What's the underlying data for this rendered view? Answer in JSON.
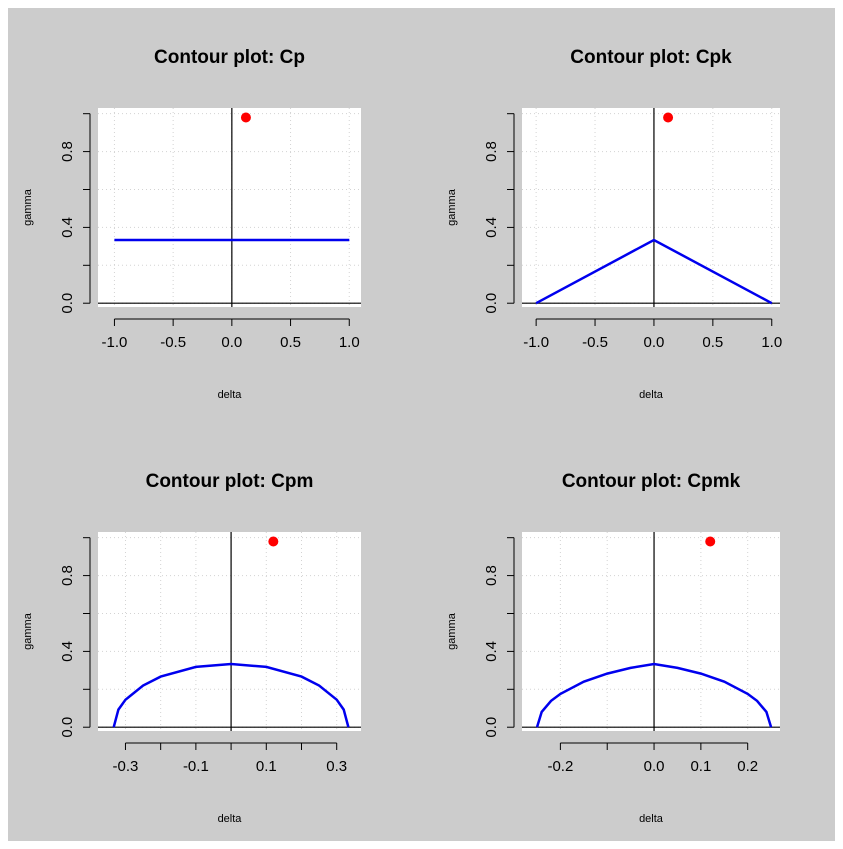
{
  "chart_data": [
    {
      "type": "line",
      "title": "Contour plot: Cp",
      "xlabel": "delta",
      "ylabel": "gamma",
      "x": [
        -1,
        1
      ],
      "values": [
        0.3333,
        0.3333
      ],
      "color": "#0000ee",
      "point_x": 0.12,
      "point_y": 0.98,
      "point_color": "#ff0000",
      "ref_x": 0,
      "ref_y": 0,
      "xlim": [
        -1.14,
        1.1
      ],
      "ylim": [
        -0.02,
        1.03
      ],
      "xticks": [
        {
          "value": -1,
          "label": "-1.0"
        },
        -0.5,
        {
          "value": 0,
          "label": "0.0"
        },
        0.5,
        {
          "value": 1,
          "label": "1.0"
        }
      ],
      "xminorticks": [],
      "yticks": [
        {
          "value": 0,
          "label": "0.0"
        },
        0.4,
        0.8
      ],
      "yminorticks": [
        0.2,
        0.6,
        1.0
      ],
      "grid": true
    },
    {
      "type": "line",
      "title": "Contour plot: Cpk",
      "xlabel": "delta",
      "ylabel": "gamma",
      "x": [
        -1,
        0,
        1
      ],
      "values": [
        0,
        0.3333,
        0
      ],
      "color": "#0000ee",
      "point_x": 0.12,
      "point_y": 0.98,
      "point_color": "#ff0000",
      "ref_x": 0,
      "ref_y": 0,
      "xlim": [
        -1.12,
        1.07
      ],
      "ylim": [
        -0.02,
        1.03
      ],
      "xticks": [
        {
          "value": -1,
          "label": "-1.0"
        },
        -0.5,
        {
          "value": 0,
          "label": "0.0"
        },
        0.5,
        {
          "value": 1,
          "label": "1.0"
        }
      ],
      "xminorticks": [],
      "yticks": [
        {
          "value": 0,
          "label": "0.0"
        },
        0.4,
        0.8
      ],
      "yminorticks": [
        0.2,
        0.6,
        1.0
      ],
      "grid": true
    },
    {
      "type": "line",
      "title": "Contour plot: Cpm",
      "xlabel": "delta",
      "ylabel": "gamma",
      "x": [
        -0.3333,
        -0.32,
        -0.3,
        -0.25,
        -0.2,
        -0.1,
        0,
        0.1,
        0.2,
        0.25,
        0.3,
        0.32,
        0.3333
      ],
      "values": [
        0,
        0.093,
        0.145,
        0.22,
        0.267,
        0.318,
        0.3333,
        0.318,
        0.267,
        0.22,
        0.145,
        0.093,
        0
      ],
      "color": "#0000ee",
      "point_x": 0.12,
      "point_y": 0.98,
      "point_color": "#ff0000",
      "ref_x": 0,
      "ref_y": 0,
      "xlim": [
        -0.378,
        0.369
      ],
      "ylim": [
        -0.02,
        1.03
      ],
      "xticks": [
        -0.3,
        -0.1,
        0.1,
        0.3
      ],
      "xminorticks": [
        -0.2,
        0,
        0.2
      ],
      "yticks": [
        {
          "value": 0,
          "label": "0.0"
        },
        0.4,
        0.8
      ],
      "yminorticks": [
        0.2,
        0.6,
        1.0
      ],
      "grid": true
    },
    {
      "type": "line",
      "title": "Contour plot: Cpmk",
      "xlabel": "delta",
      "ylabel": "gamma",
      "x": [
        -0.25,
        -0.24,
        -0.22,
        -0.2,
        -0.15,
        -0.1,
        -0.05,
        0,
        0.05,
        0.1,
        0.15,
        0.2,
        0.22,
        0.24,
        0.25
      ],
      "values": [
        0,
        0.081,
        0.139,
        0.176,
        0.24,
        0.283,
        0.313,
        0.3333,
        0.313,
        0.283,
        0.24,
        0.176,
        0.139,
        0.081,
        0
      ],
      "color": "#0000ee",
      "point_x": 0.12,
      "point_y": 0.98,
      "point_color": "#ff0000",
      "ref_x": 0,
      "ref_y": 0,
      "xlim": [
        -0.282,
        0.269
      ],
      "ylim": [
        -0.02,
        1.03
      ],
      "xticks": [
        -0.2,
        {
          "value": 0,
          "label": "0.0"
        },
        0.1,
        0.2
      ],
      "xminorticks": [
        -0.1
      ],
      "yticks": [
        {
          "value": 0,
          "label": "0.0"
        },
        0.4,
        0.8
      ],
      "yminorticks": [
        0.2,
        0.6,
        1.0
      ],
      "grid": true
    }
  ]
}
